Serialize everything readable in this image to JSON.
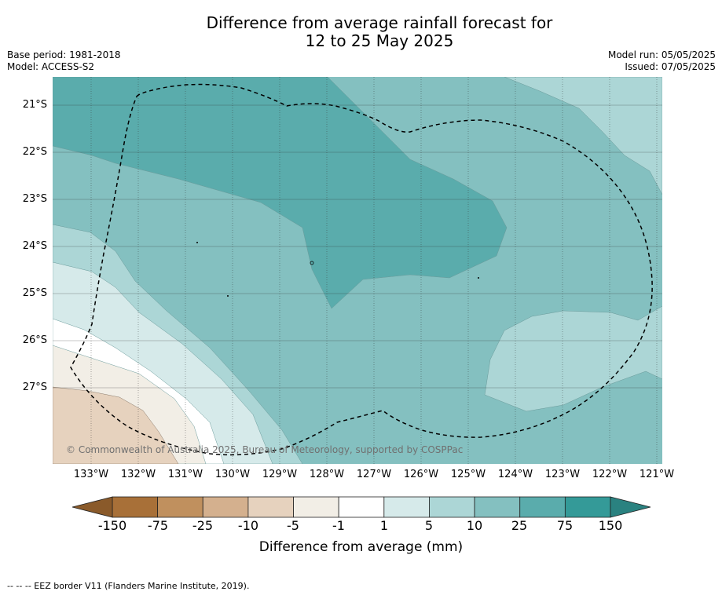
{
  "title_line1": "Difference from average rainfall forecast for",
  "title_line2": "12 to 25 May 2025",
  "base_period": "Base period: 1981-2018",
  "model": "Model: ACCESS-S2",
  "model_run": "Model run: 05/05/2025",
  "issued": "Issued: 07/05/2025",
  "map": {
    "latitude_labels": [
      "21°S",
      "22°S",
      "23°S",
      "24°S",
      "25°S",
      "26°S",
      "27°S"
    ],
    "longitude_labels": [
      "133°W",
      "132°W",
      "131°W",
      "130°W",
      "129°W",
      "128°W",
      "127°W",
      "126°W",
      "125°W",
      "124°W",
      "123°W",
      "122°W",
      "121°W"
    ],
    "copyright": "© Commonwealth of Australia 2025, Bureau of Meteorology, supported by COSPPac",
    "border_style": "dashed"
  },
  "colorbar": {
    "labels": [
      "-150",
      "-75",
      "-25",
      "-10",
      "-5",
      "-1",
      "1",
      "5",
      "10",
      "25",
      "75",
      "150"
    ],
    "colors": [
      "#a87038",
      "#c0905e",
      "#d4b08e",
      "#e6d2be",
      "#f2eee6",
      "#ffffff",
      "#d6eaea",
      "#acd6d6",
      "#84c0c0",
      "#5aacac",
      "#349a98"
    ],
    "extend_low_color": "#8a5a2a",
    "extend_high_color": "#2a8280",
    "title": "Difference from average (mm)"
  },
  "footnote": "--  --  -- EEZ border V11 (Flanders Marine Institute, 2019)."
}
